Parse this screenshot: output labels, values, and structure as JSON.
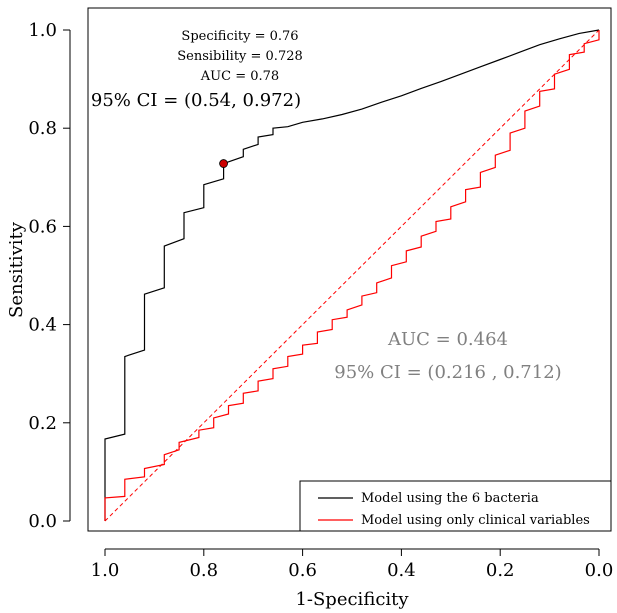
{
  "chart_data": {
    "type": "line",
    "xlabel": "1-Specificity",
    "ylabel": "Sensitivity",
    "x_reversed": true,
    "xlim": [
      1.0,
      0.0
    ],
    "ylim": [
      0.0,
      1.0
    ],
    "x_ticks": [
      "1.0",
      "0.8",
      "0.6",
      "0.4",
      "0.2",
      "0.0"
    ],
    "x_tick_values": [
      1.0,
      0.8,
      0.6,
      0.4,
      0.2,
      0.0
    ],
    "y_ticks": [
      "0.0",
      "0.2",
      "0.4",
      "0.6",
      "0.8",
      "1.0"
    ],
    "y_tick_values": [
      0.0,
      0.2,
      0.4,
      0.6,
      0.8,
      1.0
    ],
    "grid": false,
    "legend_position": "bottom-right",
    "series": [
      {
        "name": "Model using the 6 bacteria",
        "color": "#000000",
        "points": [
          [
            1.0,
            0.0
          ],
          [
            1.0,
            0.167
          ],
          [
            0.96,
            0.177
          ],
          [
            0.96,
            0.335
          ],
          [
            0.92,
            0.348
          ],
          [
            0.92,
            0.462
          ],
          [
            0.88,
            0.475
          ],
          [
            0.88,
            0.56
          ],
          [
            0.84,
            0.575
          ],
          [
            0.84,
            0.628
          ],
          [
            0.8,
            0.638
          ],
          [
            0.8,
            0.685
          ],
          [
            0.76,
            0.697
          ],
          [
            0.76,
            0.728
          ],
          [
            0.72,
            0.742
          ],
          [
            0.72,
            0.757
          ],
          [
            0.69,
            0.767
          ],
          [
            0.69,
            0.782
          ],
          [
            0.66,
            0.787
          ],
          [
            0.66,
            0.8
          ],
          [
            0.63,
            0.803
          ],
          [
            0.6,
            0.812
          ],
          [
            0.56,
            0.819
          ],
          [
            0.52,
            0.828
          ],
          [
            0.48,
            0.839
          ],
          [
            0.44,
            0.853
          ],
          [
            0.4,
            0.866
          ],
          [
            0.36,
            0.881
          ],
          [
            0.32,
            0.895
          ],
          [
            0.28,
            0.91
          ],
          [
            0.24,
            0.925
          ],
          [
            0.2,
            0.94
          ],
          [
            0.16,
            0.955
          ],
          [
            0.12,
            0.97
          ],
          [
            0.08,
            0.982
          ],
          [
            0.04,
            0.993
          ],
          [
            0.0,
            1.0
          ]
        ]
      },
      {
        "name": "Model using only clinical variables",
        "color": "#ff0000",
        "points": [
          [
            1.0,
            0.0
          ],
          [
            1.0,
            0.047
          ],
          [
            0.96,
            0.05
          ],
          [
            0.96,
            0.085
          ],
          [
            0.92,
            0.09
          ],
          [
            0.92,
            0.107
          ],
          [
            0.88,
            0.115
          ],
          [
            0.88,
            0.135
          ],
          [
            0.85,
            0.145
          ],
          [
            0.85,
            0.16
          ],
          [
            0.81,
            0.17
          ],
          [
            0.81,
            0.185
          ],
          [
            0.78,
            0.19
          ],
          [
            0.78,
            0.21
          ],
          [
            0.75,
            0.218
          ],
          [
            0.75,
            0.235
          ],
          [
            0.72,
            0.24
          ],
          [
            0.72,
            0.26
          ],
          [
            0.69,
            0.265
          ],
          [
            0.69,
            0.285
          ],
          [
            0.66,
            0.29
          ],
          [
            0.66,
            0.31
          ],
          [
            0.63,
            0.315
          ],
          [
            0.63,
            0.335
          ],
          [
            0.6,
            0.34
          ],
          [
            0.6,
            0.358
          ],
          [
            0.57,
            0.362
          ],
          [
            0.57,
            0.385
          ],
          [
            0.54,
            0.39
          ],
          [
            0.54,
            0.41
          ],
          [
            0.51,
            0.415
          ],
          [
            0.51,
            0.43
          ],
          [
            0.48,
            0.44
          ],
          [
            0.48,
            0.458
          ],
          [
            0.45,
            0.465
          ],
          [
            0.45,
            0.485
          ],
          [
            0.42,
            0.495
          ],
          [
            0.42,
            0.52
          ],
          [
            0.39,
            0.528
          ],
          [
            0.39,
            0.55
          ],
          [
            0.36,
            0.558
          ],
          [
            0.36,
            0.58
          ],
          [
            0.33,
            0.59
          ],
          [
            0.33,
            0.61
          ],
          [
            0.3,
            0.615
          ],
          [
            0.3,
            0.64
          ],
          [
            0.27,
            0.65
          ],
          [
            0.27,
            0.675
          ],
          [
            0.24,
            0.68
          ],
          [
            0.24,
            0.71
          ],
          [
            0.21,
            0.72
          ],
          [
            0.21,
            0.745
          ],
          [
            0.18,
            0.755
          ],
          [
            0.18,
            0.79
          ],
          [
            0.15,
            0.8
          ],
          [
            0.15,
            0.835
          ],
          [
            0.12,
            0.845
          ],
          [
            0.12,
            0.875
          ],
          [
            0.09,
            0.88
          ],
          [
            0.09,
            0.91
          ],
          [
            0.06,
            0.92
          ],
          [
            0.06,
            0.95
          ],
          [
            0.03,
            0.955
          ],
          [
            0.03,
            0.972
          ],
          [
            0.0,
            0.98
          ],
          [
            0.0,
            1.0
          ]
        ]
      }
    ],
    "reference_line": {
      "color": "#ff0000",
      "style": "dashed",
      "from": [
        1.0,
        0.0
      ],
      "to": [
        0.0,
        1.0
      ]
    },
    "highlight_point": {
      "x": 0.76,
      "y": 0.728,
      "color": "#cc0000"
    },
    "annotations": {
      "specificity": "Specificity = 0.76",
      "sensibility": "Sensibility = 0.728",
      "auc1": "AUC = 0.78",
      "ci1": "95% CI = (0.54, 0.972)",
      "auc2": "AUC = 0.464",
      "ci2": "95% CI = (0.216 , 0.712)"
    }
  }
}
